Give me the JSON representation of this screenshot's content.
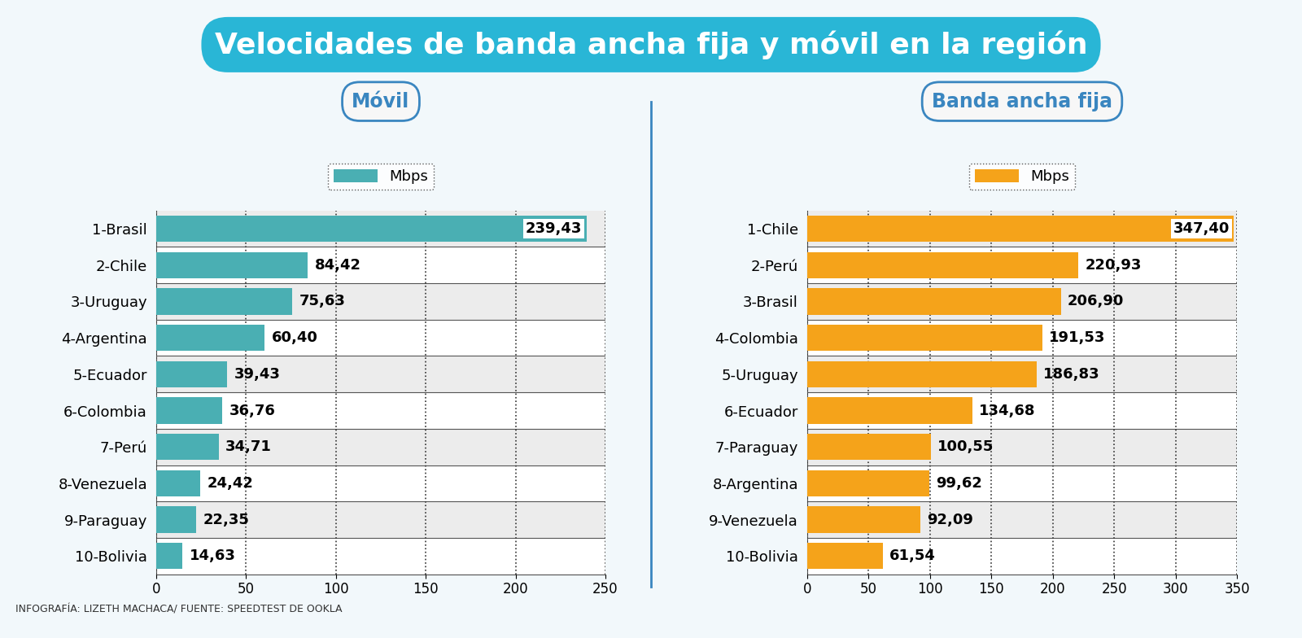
{
  "title": "Velocidades de banda ancha fija y móvil en la región",
  "source": "INFOGRAFÍA: LIZETH MACHACA/ FUENTE: SPEEDTEST DE OOKLA",
  "chart_data": [
    {
      "type": "bar",
      "orientation": "horizontal",
      "title": "Móvil",
      "categories": [
        "1-Brasil",
        "2-Chile",
        "3-Uruguay",
        "4-Argentina",
        "5-Ecuador",
        "6-Colombia",
        "7-Perú",
        "8-Venezuela",
        "9-Paraguay",
        "10-Bolivia"
      ],
      "series": [
        {
          "name": "Mbps",
          "color": "#4aafb3",
          "values": [
            239.43,
            84.42,
            75.63,
            60.4,
            39.43,
            36.76,
            34.71,
            24.42,
            22.35,
            14.63
          ],
          "value_labels": [
            "239,43",
            "84,42",
            "75,63",
            "60,40",
            "39,43",
            "36,76",
            "34,71",
            "24,42",
            "22,35",
            "14,63"
          ]
        }
      ],
      "xlim": [
        0,
        250
      ],
      "xticks": [
        0,
        50,
        100,
        150,
        200,
        250
      ],
      "grid": true,
      "legend": "upper center",
      "data_labels": true
    },
    {
      "type": "bar",
      "orientation": "horizontal",
      "title": "Banda ancha fija",
      "categories": [
        "1-Chile",
        "2-Perú",
        "3-Brasil",
        "4-Colombia",
        "5-Uruguay",
        "6-Ecuador",
        "7-Paraguay",
        "8-Argentina",
        "9-Venezuela",
        "10-Bolivia"
      ],
      "series": [
        {
          "name": "Mbps",
          "color": "#f5a31a",
          "values": [
            347.4,
            220.93,
            206.9,
            191.53,
            186.83,
            134.68,
            100.55,
            99.62,
            92.09,
            61.54
          ],
          "value_labels": [
            "347,40",
            "220,93",
            "206,90",
            "191,53",
            "186,83",
            "134,68",
            "100,55",
            "99,62",
            "92,09",
            "61,54"
          ]
        }
      ],
      "xlim": [
        0,
        350
      ],
      "xticks": [
        0,
        50,
        100,
        150,
        200,
        250,
        300,
        350
      ],
      "grid": true,
      "legend": "upper center",
      "data_labels": true
    }
  ]
}
